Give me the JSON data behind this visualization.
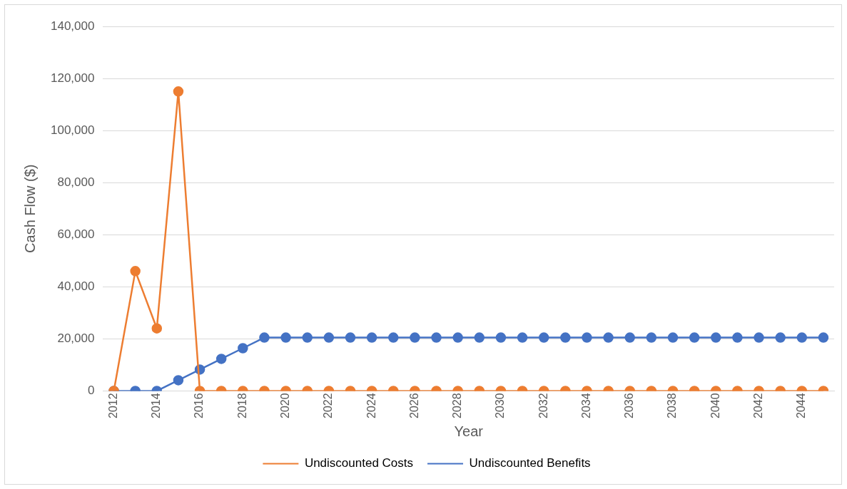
{
  "chart_data": {
    "type": "line",
    "xlabel": "Year",
    "ylabel": "Cash Flow ($)",
    "categories": [
      "2012",
      null,
      "2014",
      null,
      "2016",
      null,
      "2018",
      null,
      "2020",
      null,
      "2022",
      null,
      "2024",
      null,
      "2026",
      null,
      "2028",
      null,
      "2030",
      null,
      "2032",
      null,
      "2034",
      null,
      "2036",
      null,
      "2038",
      null,
      "2040",
      null,
      "2042",
      null,
      "2044",
      null
    ],
    "series": [
      {
        "name": "Undiscounted Costs",
        "color": "#ed7d31",
        "values": [
          0,
          46000,
          24000,
          115000,
          0,
          0,
          0,
          0,
          0,
          0,
          0,
          0,
          0,
          0,
          0,
          0,
          0,
          0,
          0,
          0,
          0,
          0,
          0,
          0,
          0,
          0,
          0,
          0,
          0,
          0,
          0,
          0,
          0,
          0
        ]
      },
      {
        "name": "Undiscounted Benefits",
        "color": "#4472c4",
        "values": [
          0,
          0,
          0,
          4100,
          8200,
          12300,
          16400,
          20500,
          20500,
          20500,
          20500,
          20500,
          20500,
          20500,
          20500,
          20500,
          20500,
          20500,
          20500,
          20500,
          20500,
          20500,
          20500,
          20500,
          20500,
          20500,
          20500,
          20500,
          20500,
          20500,
          20500,
          20500,
          20500,
          20500
        ]
      }
    ],
    "ylim": [
      0,
      140000
    ],
    "yticks": [
      0,
      {
        "value": 20000,
        "label": "20,000"
      },
      {
        "value": 40000,
        "label": "40,000"
      },
      {
        "value": 60000,
        "label": "60,000"
      },
      {
        "value": 80000,
        "label": "80,000"
      },
      {
        "value": 100000,
        "label": "100,000"
      },
      {
        "value": 120000,
        "label": "120,000"
      },
      {
        "value": 140000,
        "label": "140,000"
      }
    ],
    "grid": "y",
    "legend": "bottom",
    "marker": "circle",
    "line_style": "solid"
  }
}
